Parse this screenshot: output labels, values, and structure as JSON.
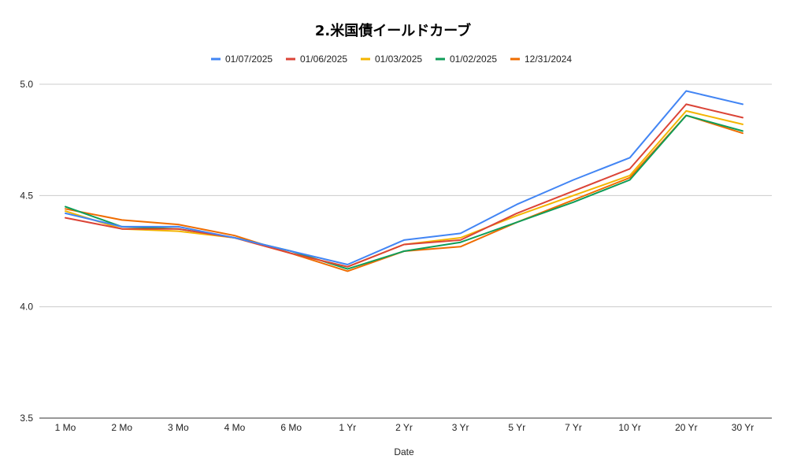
{
  "chart_data": {
    "type": "line",
    "title": "2.米国債イールドカーブ",
    "xlabel": "Date",
    "ylabel": "",
    "ylim": [
      3.5,
      5.0
    ],
    "yticks": [
      "3.5",
      "4.0",
      "4.5",
      "5.0"
    ],
    "grid": true,
    "legend_position": "top",
    "categories": [
      "1 Mo",
      "2 Mo",
      "3 Mo",
      "4 Mo",
      "6 Mo",
      "1 Yr",
      "2 Yr",
      "3 Yr",
      "5 Yr",
      "7 Yr",
      "10 Yr",
      "20 Yr",
      "30 Yr"
    ],
    "series": [
      {
        "name": "01/07/2025",
        "color": "#4285F4",
        "values": [
          4.42,
          4.36,
          4.36,
          4.31,
          4.25,
          4.19,
          4.3,
          4.33,
          4.46,
          4.57,
          4.67,
          4.97,
          4.91
        ]
      },
      {
        "name": "01/06/2025",
        "color": "#DB4437",
        "values": [
          4.4,
          4.35,
          4.35,
          4.31,
          4.24,
          4.18,
          4.28,
          4.3,
          4.42,
          4.52,
          4.62,
          4.91,
          4.85
        ]
      },
      {
        "name": "01/03/2025",
        "color": "#F4B400",
        "values": [
          4.43,
          4.35,
          4.34,
          4.31,
          4.24,
          4.18,
          4.28,
          4.31,
          4.41,
          4.5,
          4.59,
          4.88,
          4.82
        ]
      },
      {
        "name": "01/02/2025",
        "color": "#0F9D58",
        "values": [
          4.45,
          4.36,
          4.35,
          4.31,
          4.25,
          4.17,
          4.25,
          4.29,
          4.38,
          4.47,
          4.57,
          4.86,
          4.79
        ]
      },
      {
        "name": "12/31/2024",
        "color": "#EF6C00",
        "values": [
          4.44,
          4.39,
          4.37,
          4.32,
          4.24,
          4.16,
          4.25,
          4.27,
          4.38,
          4.48,
          4.58,
          4.86,
          4.78
        ]
      }
    ]
  }
}
